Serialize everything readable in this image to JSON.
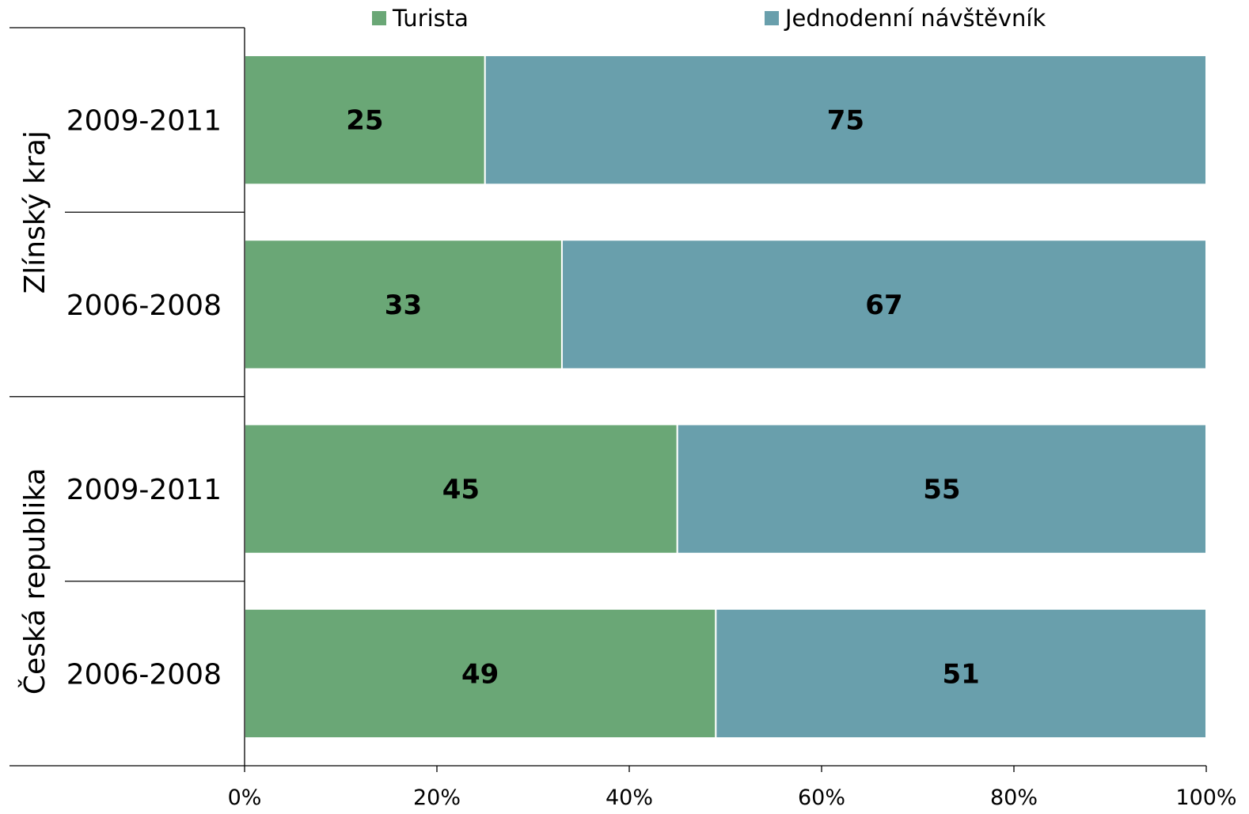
{
  "chart_data": {
    "type": "bar",
    "orientation": "horizontal",
    "stacked": "percent",
    "groups": [
      {
        "label": "Zlínský kraj",
        "categories": [
          "2009-2011",
          "2006-2008"
        ]
      },
      {
        "label": "Česká republika",
        "categories": [
          "2009-2011",
          "2006-2008"
        ]
      }
    ],
    "series": [
      {
        "name": "Turista",
        "color": "#6aa776",
        "values": [
          25,
          33,
          45,
          49
        ]
      },
      {
        "name": "Jednodenní návštěvník",
        "color": "#699fac",
        "values": [
          75,
          67,
          55,
          51
        ]
      }
    ],
    "xlim": [
      0,
      100
    ],
    "xticks": [
      "0%",
      "20%",
      "40%",
      "60%",
      "80%",
      "100%"
    ],
    "legend_position": "top",
    "grid": false
  }
}
